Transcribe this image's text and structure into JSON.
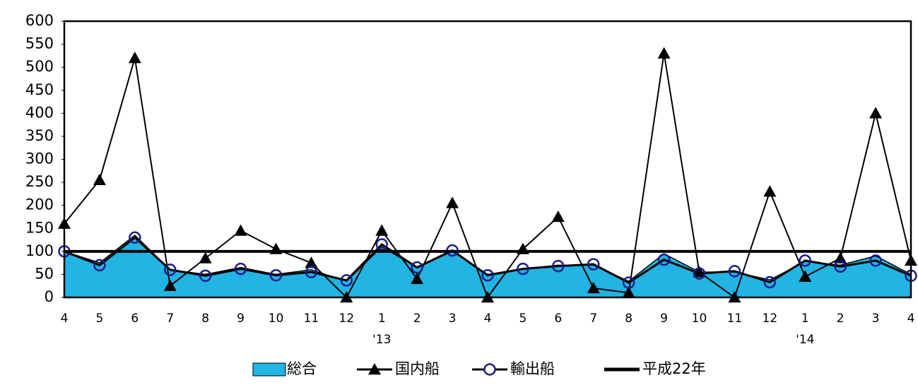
{
  "chart_data": {
    "type": "line",
    "categories": [
      "4",
      "5",
      "6",
      "7",
      "8",
      "9",
      "10",
      "11",
      "12",
      "1",
      "2",
      "3",
      "4",
      "5",
      "6",
      "7",
      "8",
      "9",
      "10",
      "11",
      "12",
      "1",
      "2",
      "3",
      "4"
    ],
    "category_years": [
      null,
      null,
      null,
      null,
      null,
      null,
      null,
      null,
      null,
      "'13",
      null,
      null,
      null,
      null,
      null,
      null,
      null,
      null,
      null,
      null,
      null,
      "'14",
      null,
      null,
      null
    ],
    "ylim": [
      0,
      600
    ],
    "yticks": [
      0,
      50,
      100,
      150,
      200,
      250,
      300,
      350,
      400,
      450,
      500,
      550,
      600
    ],
    "series": [
      {
        "name": "総合",
        "kind": "area",
        "color": "#22b4e2",
        "values": [
          100,
          75,
          135,
          60,
          50,
          65,
          50,
          60,
          35,
          110,
          65,
          100,
          50,
          62,
          70,
          70,
          35,
          95,
          55,
          55,
          38,
          78,
          70,
          90,
          50
        ]
      },
      {
        "name": "国内船",
        "kind": "line",
        "marker": "triangle",
        "color": "#000000",
        "values": [
          160,
          255,
          520,
          25,
          85,
          145,
          105,
          75,
          0,
          145,
          40,
          205,
          0,
          105,
          175,
          20,
          10,
          530,
          55,
          0,
          230,
          45,
          85,
          400,
          80
        ]
      },
      {
        "name": "輸出船",
        "kind": "line",
        "marker": "circle",
        "color": "#000000",
        "marker_color": "#1c1c8c",
        "values": [
          100,
          70,
          130,
          60,
          47,
          62,
          48,
          55,
          37,
          115,
          65,
          102,
          48,
          62,
          68,
          72,
          32,
          82,
          52,
          57,
          33,
          80,
          67,
          80,
          47
        ]
      },
      {
        "name": "平成22年",
        "kind": "line",
        "color": "#000000",
        "values": [
          100,
          100,
          100,
          100,
          100,
          100,
          100,
          100,
          100,
          100,
          100,
          100,
          100,
          100,
          100,
          100,
          100,
          100,
          100,
          100,
          100,
          100,
          100,
          100,
          100
        ]
      }
    ]
  }
}
